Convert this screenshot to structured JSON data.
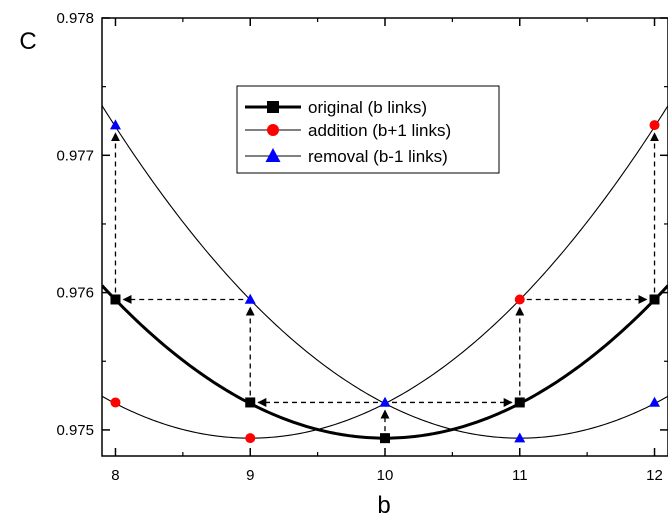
{
  "chart_data": {
    "type": "line",
    "xlabel": "b",
    "ylabel": "C",
    "xlim": [
      7.9,
      12.1
    ],
    "ylim": [
      0.97481,
      0.978
    ],
    "x_ticks": [
      8,
      9,
      10,
      11,
      12
    ],
    "x_tick_labels": [
      "8",
      "9",
      "10",
      "11",
      "12"
    ],
    "y_ticks": [
      0.975,
      0.976,
      0.977,
      0.978
    ],
    "y_tick_labels": [
      "0.975",
      "0.976",
      "0.977",
      "0.978"
    ],
    "legend_position": "top-center",
    "series": [
      {
        "name": "original (b links)",
        "marker": "square",
        "color": "#000000",
        "curve_width": "thick",
        "fit_vertex": [
          10,
          0.97494
        ],
        "fit_curvature": 0.000252,
        "x": [
          8,
          9,
          10,
          11,
          12
        ],
        "y": [
          0.97595,
          0.9752,
          0.97494,
          0.9752,
          0.97595
        ]
      },
      {
        "name": "addition (b+1 links)",
        "marker": "circle",
        "color": "#ff0000",
        "curve_width": "thin",
        "fit_vertex": [
          9,
          0.97494
        ],
        "fit_curvature": 0.000252,
        "x": [
          8,
          9,
          11,
          12
        ],
        "y": [
          0.9752,
          0.97494,
          0.97595,
          0.97722
        ]
      },
      {
        "name": "removal (b-1 links)",
        "marker": "triangle",
        "color": "#0000ff",
        "curve_width": "thin",
        "fit_vertex": [
          11,
          0.97494
        ],
        "fit_curvature": 0.000252,
        "x": [
          8,
          9,
          10,
          11,
          12
        ],
        "y": [
          0.97722,
          0.97595,
          0.9752,
          0.97494,
          0.9752
        ]
      }
    ],
    "annotations": {
      "style": "dashed-arrow",
      "color": "#000000",
      "vertical_arrows": [
        {
          "x": 8,
          "from": 0.97595,
          "to": 0.97722
        },
        {
          "x": 9,
          "from": 0.9752,
          "to": 0.97595
        },
        {
          "x": 10,
          "from": 0.97494,
          "to": 0.9752
        },
        {
          "x": 11,
          "from": 0.9752,
          "to": 0.97595
        },
        {
          "x": 12,
          "from": 0.97595,
          "to": 0.97722
        }
      ],
      "horizontal_arrows": [
        {
          "y": 0.97595,
          "from": 9,
          "to": 8
        },
        {
          "y": 0.97595,
          "from": 11,
          "to": 12
        },
        {
          "y": 0.9752,
          "from": 10,
          "to": 9
        },
        {
          "y": 0.9752,
          "from": 10,
          "to": 11
        }
      ]
    }
  }
}
